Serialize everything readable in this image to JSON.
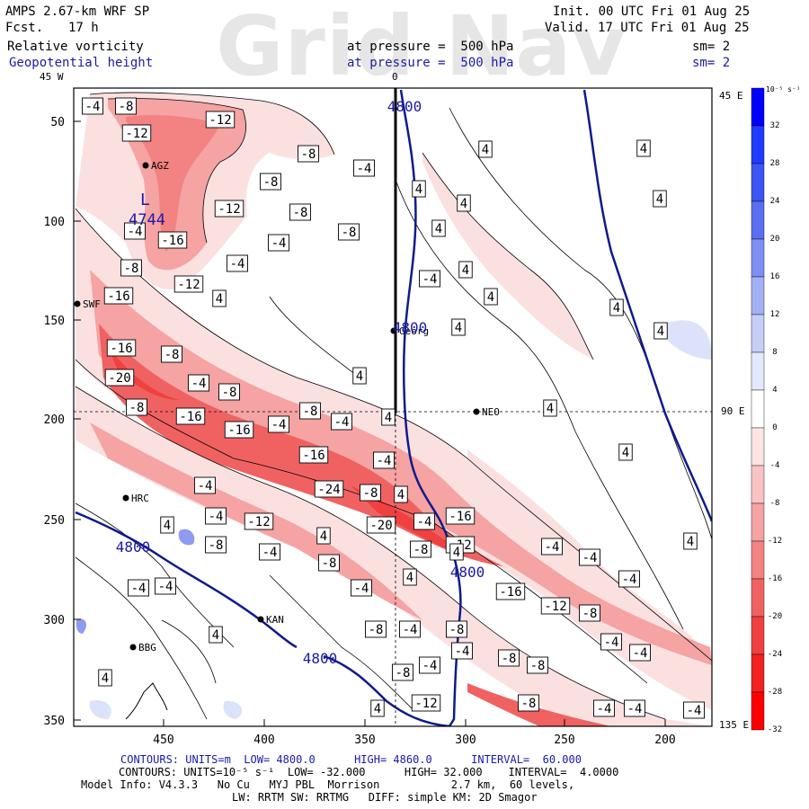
{
  "header": {
    "model": "AMPS 2.67-km WRF SP",
    "fcst_label": "Fcst.",
    "fcst_value": "17 h",
    "init": "Init. 00 UTC Fri 01 Aug 25",
    "valid": "Valid. 17 UTC Fri 01 Aug 25",
    "field1": "Relative vorticity",
    "field1_level": "at pressure =  500 hPa",
    "field1_sm": "sm= 2",
    "field2": "Geopotential height",
    "field2_level": "at pressure =  500 hPa",
    "field2_sm": "sm= 2",
    "watermark": "Grid Nav"
  },
  "map": {
    "meridian_labels": {
      "top_left": "45 W",
      "top_center": "0",
      "right_top": "45 E",
      "right_mid": "90 E",
      "right_bottom": "135 E"
    },
    "x_ticks": [
      "450",
      "400",
      "350",
      "300",
      "250",
      "200"
    ],
    "y_ticks": [
      "50",
      "100",
      "150",
      "200",
      "250",
      "300",
      "350"
    ],
    "stations": [
      "AGZ",
      "SWF",
      "Georg",
      "NEO",
      "HRC",
      "KAN",
      "BBG"
    ],
    "low_marker": "L",
    "low_value": "4744",
    "height_labels": [
      "4800",
      "4800",
      "4800",
      "4800",
      "4800"
    ],
    "vort_labels": [
      "-4",
      "-8",
      "-12",
      "-12",
      "-8",
      "-4",
      "-8",
      "-12",
      "-8",
      "-4",
      "-16",
      "-4",
      "-8",
      "-4",
      "-12",
      "-8",
      "-4",
      "-16",
      "-16",
      "-8",
      "-4",
      "-8",
      "-20",
      "-8",
      "-16",
      "-16",
      "-4",
      "-8",
      "-4",
      "-16",
      "-4",
      "-24",
      "-8",
      "-20",
      "-4",
      "-16",
      "-8",
      "-12",
      "-4",
      "-12",
      "-4",
      "-8",
      "-4",
      "-8",
      "-4",
      "-8",
      "-4",
      "-8",
      "-4",
      "-16",
      "-12",
      "-8",
      "-8",
      "-4",
      "-8",
      "-8",
      "-12",
      "-8",
      "-4",
      "-4",
      "-4",
      "-4",
      "-4",
      "-4",
      "-4",
      "-4",
      "-4",
      "-4"
    ],
    "pos_labels": [
      "4",
      "4",
      "4",
      "4",
      "4",
      "4",
      "4",
      "4",
      "4",
      "4",
      "4",
      "4",
      "4",
      "4",
      "4",
      "4",
      "4",
      "4",
      "4",
      "4",
      "4",
      "4",
      "4",
      "4",
      "4"
    ],
    "colors": {
      "navy": "#0d1b8c",
      "red_strong": "#ff1a1a",
      "red_mid": "#f59a9a",
      "red_light": "#fbe0e0",
      "blue_mid": "#8f9bf0",
      "blue_light": "#dde2fb"
    }
  },
  "colorbar": {
    "unit": "10⁻⁵ s⁻¹",
    "ticks": [
      "32",
      "28",
      "24",
      "20",
      "16",
      "12",
      "8",
      "4",
      "0",
      "-4",
      "-8",
      "-12",
      "-16",
      "-20",
      "-24",
      "-28",
      "-32"
    ],
    "colors": [
      "#0000ff",
      "#1f3bff",
      "#3b55f2",
      "#5a6ff0",
      "#7d8ff2",
      "#a3b0f5",
      "#c6cef8",
      "#e4e8fb",
      "#ffffff",
      "#fde4e4",
      "#f9c3c3",
      "#f5a3a3",
      "#f38282",
      "#f06262",
      "#f04040",
      "#f32020",
      "#ff0000"
    ]
  },
  "footer": {
    "line1": "CONTOURS: UNITS=m  LOW= 4800.0      HIGH= 4860.0      INTERVAL=  60.000",
    "line2": "CONTOURS: UNITS=10⁻⁵ s⁻¹  LOW= -32.000      HIGH= 32.000    INTERVAL=  4.0000",
    "line3": "Model Info: V4.3.3   No Cu   MYJ PBL  Morrison           2.7 km,  60 levels,",
    "line4": "LW: RRTM SW: RRTMG   DIFF: simple KM: 2D Smagor"
  }
}
